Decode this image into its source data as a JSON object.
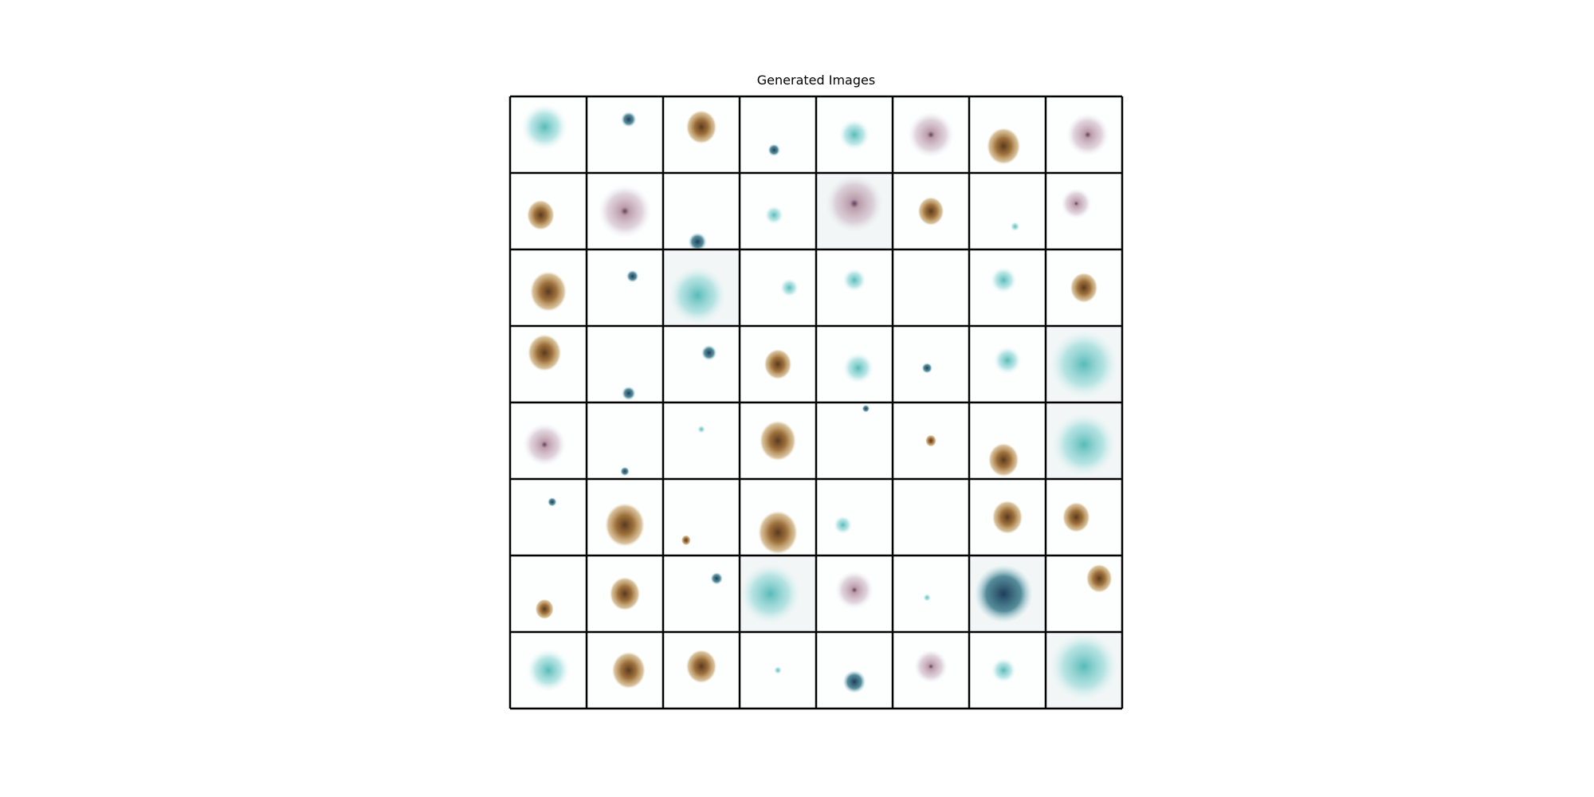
{
  "title": "Generated Images"
}
